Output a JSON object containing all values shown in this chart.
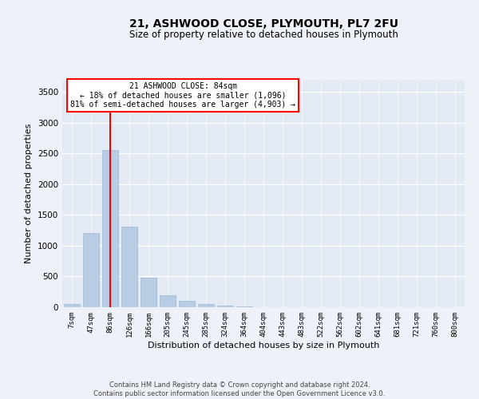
{
  "title": "21, ASHWOOD CLOSE, PLYMOUTH, PL7 2FU",
  "subtitle": "Size of property relative to detached houses in Plymouth",
  "xlabel": "Distribution of detached houses by size in Plymouth",
  "ylabel": "Number of detached properties",
  "footer_line1": "Contains HM Land Registry data © Crown copyright and database right 2024.",
  "footer_line2": "Contains public sector information licensed under the Open Government Licence v3.0.",
  "annotation_title": "21 ASHWOOD CLOSE: 84sqm",
  "annotation_line2": "← 18% of detached houses are smaller (1,096)",
  "annotation_line3": "81% of semi-detached houses are larger (4,903) →",
  "bar_labels": [
    "7sqm",
    "47sqm",
    "86sqm",
    "126sqm",
    "166sqm",
    "205sqm",
    "245sqm",
    "285sqm",
    "324sqm",
    "364sqm",
    "404sqm",
    "443sqm",
    "483sqm",
    "522sqm",
    "562sqm",
    "602sqm",
    "641sqm",
    "681sqm",
    "721sqm",
    "760sqm",
    "800sqm"
  ],
  "bar_values": [
    50,
    1210,
    2560,
    1305,
    478,
    192,
    105,
    55,
    32,
    14,
    6,
    4,
    2,
    1,
    1,
    0,
    0,
    0,
    0,
    0,
    0
  ],
  "bar_color": "#b8cce4",
  "bar_edgecolor": "#9ab8d0",
  "red_line_index": 2,
  "ylim": [
    0,
    3700
  ],
  "yticks": [
    0,
    500,
    1000,
    1500,
    2000,
    2500,
    3000,
    3500
  ],
  "background_color": "#eef2f8",
  "plot_bg_color": "#e4eaf4"
}
